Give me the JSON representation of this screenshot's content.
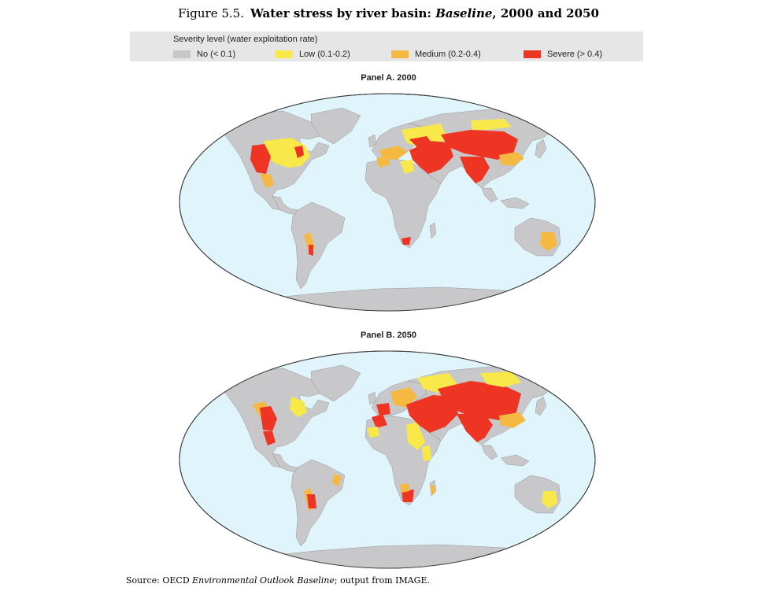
{
  "figure": {
    "number": "Figure 5.5.",
    "title_bold": "Water stress by river basin: ",
    "title_italic": "Baseline",
    "title_end": ", 2000 and 2050"
  },
  "legend": {
    "title": "Severity level (water exploitation rate)",
    "items": [
      {
        "label": "No (< 0.1)",
        "color": "#c8c8ca"
      },
      {
        "label": "Low (0.1-0.2)",
        "color": "#f8e84a"
      },
      {
        "label": "Medium (0.2-0.4)",
        "color": "#f5b942"
      },
      {
        "label": "Severe (> 0.4)",
        "color": "#ee3524"
      }
    ]
  },
  "panels": [
    {
      "title": "Panel A. 2000"
    },
    {
      "title": "Panel B. 2050"
    }
  ],
  "colors": {
    "ocean": "#e0f4fb",
    "land": "#c8c8ca",
    "outline": "#3a3a3a"
  },
  "source": {
    "prefix": "Source:  OECD ",
    "italic": "Environmental Outlook Baseline",
    "suffix": "; output from IMAGE."
  }
}
